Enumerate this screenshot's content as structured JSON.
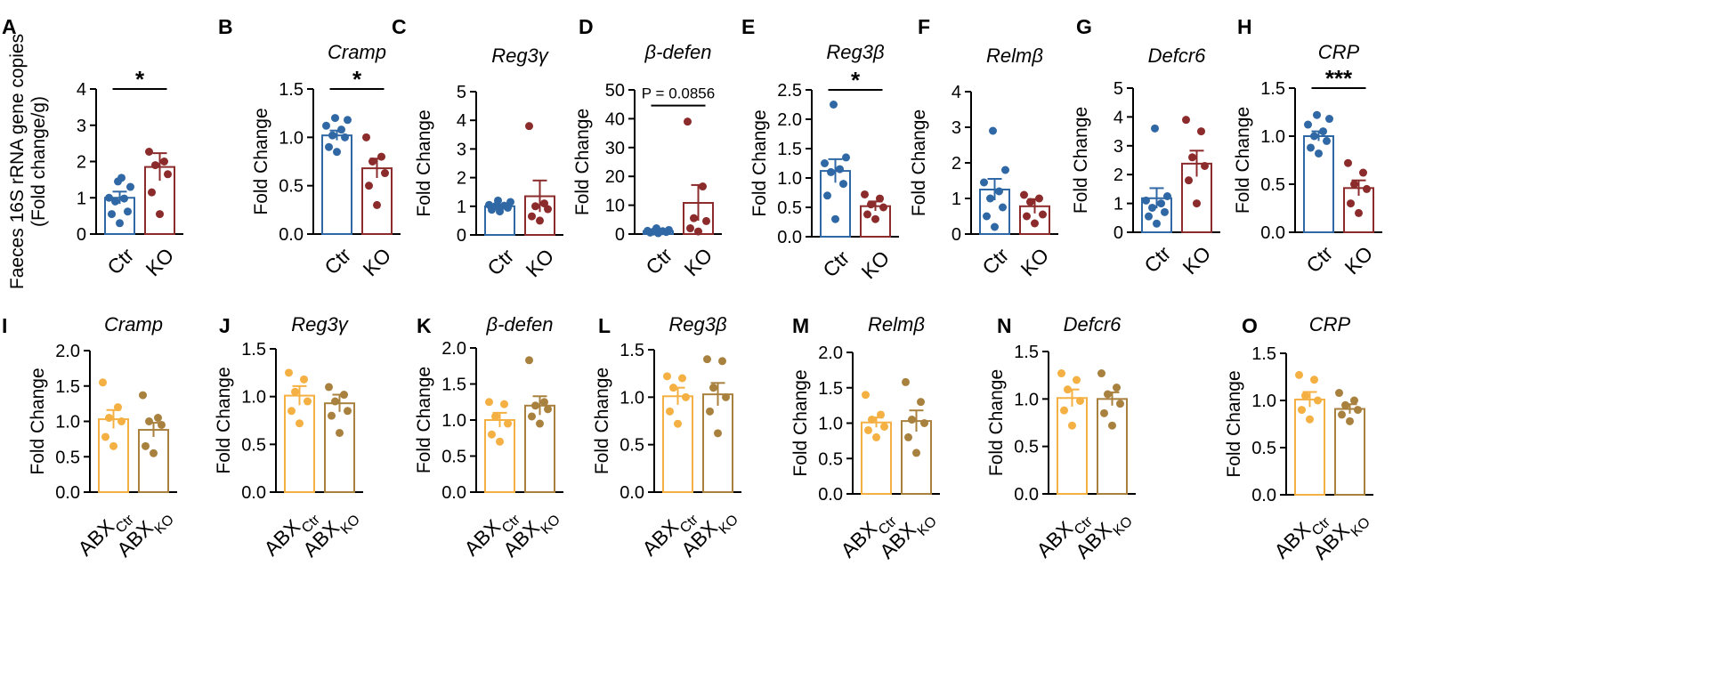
{
  "figure": {
    "colors": {
      "ctr": "#2f68a4",
      "ko": "#8c2b2b",
      "abx_ctr": "#f4b042",
      "abx_ko": "#a9813f",
      "axis": "#000000"
    }
  },
  "chart_data": [
    {
      "id": "A",
      "letter": "A",
      "type": "bar",
      "title": "",
      "ylabel_lines": [
        "Faeces 16S rRNA gene copies",
        "(Fold change/g)"
      ],
      "ylim": [
        0,
        4
      ],
      "yticks": [
        0,
        1,
        2,
        3,
        4
      ],
      "ytick_labels": [
        "0",
        "1",
        "2",
        "3",
        "4"
      ],
      "categories": [
        "Ctr",
        "KO"
      ],
      "cat_subs": [
        "",
        ""
      ],
      "color_keys": [
        "ctr",
        "ko"
      ],
      "means": [
        1.0,
        1.85
      ],
      "sems": [
        0.17,
        0.38
      ],
      "points": [
        [
          0.3,
          0.55,
          0.62,
          0.9,
          0.98,
          1.0,
          1.3,
          1.45,
          1.55
        ],
        [
          0.55,
          1.15,
          1.65,
          1.9,
          2.0,
          2.27
        ]
      ],
      "significance": "*"
    },
    {
      "id": "B",
      "letter": "B",
      "type": "bar",
      "title": "Cramp",
      "ylabel_lines": [
        "Fold Change"
      ],
      "ylim": [
        0,
        1.5
      ],
      "yticks": [
        0,
        0.5,
        1.0,
        1.5
      ],
      "ytick_labels": [
        "0.0",
        "0.5",
        "1.0",
        "1.5"
      ],
      "categories": [
        "Ctr",
        "KO"
      ],
      "cat_subs": [
        "",
        ""
      ],
      "color_keys": [
        "ctr",
        "ko"
      ],
      "means": [
        1.02,
        0.68
      ],
      "sems": [
        0.05,
        0.1
      ],
      "points": [
        [
          0.85,
          0.9,
          1.0,
          1.02,
          1.08,
          1.12,
          1.18,
          1.2
        ],
        [
          0.3,
          0.5,
          0.63,
          0.75,
          0.8,
          1.0
        ]
      ],
      "significance": "*"
    },
    {
      "id": "C",
      "letter": "C",
      "type": "bar",
      "title": "Reg3γ",
      "ylabel_lines": [
        "Fold Change"
      ],
      "ylim": [
        0,
        5
      ],
      "yticks": [
        0,
        1,
        2,
        3,
        4,
        5
      ],
      "ytick_labels": [
        "0",
        "1",
        "2",
        "3",
        "4",
        "5"
      ],
      "categories": [
        "Ctr",
        "KO"
      ],
      "cat_subs": [
        "",
        ""
      ],
      "color_keys": [
        "ctr",
        "ko"
      ],
      "means": [
        1.0,
        1.35
      ],
      "sems": [
        0.06,
        0.55
      ],
      "points": [
        [
          0.82,
          0.88,
          0.95,
          1.0,
          1.02,
          1.05,
          1.15,
          1.2
        ],
        [
          0.5,
          0.65,
          0.9,
          1.0,
          1.1,
          3.8
        ]
      ],
      "significance": ""
    },
    {
      "id": "D",
      "letter": "D",
      "type": "bar",
      "title": "β-defen",
      "ylabel_lines": [
        "Fold Change"
      ],
      "ylim": [
        0,
        50
      ],
      "yticks": [
        0,
        10,
        20,
        30,
        40,
        50
      ],
      "ytick_labels": [
        "0",
        "10",
        "20",
        "30",
        "40",
        "50"
      ],
      "categories": [
        "Ctr",
        "KO"
      ],
      "cat_subs": [
        "",
        ""
      ],
      "color_keys": [
        "ctr",
        "ko"
      ],
      "means": [
        1.0,
        10.8
      ],
      "sems": [
        0.3,
        6.2
      ],
      "points": [
        [
          0.3,
          0.5,
          0.7,
          0.9,
          1.0,
          1.1,
          1.4,
          2.0
        ],
        [
          0.9,
          2.0,
          4.5,
          5.5,
          16.5,
          39.0
        ]
      ],
      "significance": "P = 0.0856"
    },
    {
      "id": "E",
      "letter": "E",
      "type": "bar",
      "title": "Reg3β",
      "ylabel_lines": [
        "Fold Change"
      ],
      "ylim": [
        0,
        2.5
      ],
      "yticks": [
        0,
        0.5,
        1.0,
        1.5,
        2.0,
        2.5
      ],
      "ytick_labels": [
        "0.0",
        "0.5",
        "1.0",
        "1.5",
        "2.0",
        "2.5"
      ],
      "categories": [
        "Ctr",
        "KO"
      ],
      "cat_subs": [
        "",
        ""
      ],
      "color_keys": [
        "ctr",
        "ko"
      ],
      "means": [
        1.12,
        0.52
      ],
      "sems": [
        0.2,
        0.08
      ],
      "points": [
        [
          0.3,
          0.7,
          0.9,
          1.1,
          1.15,
          1.25,
          1.35,
          2.25
        ],
        [
          0.3,
          0.38,
          0.5,
          0.55,
          0.65,
          0.72
        ]
      ],
      "significance": "*"
    },
    {
      "id": "F",
      "letter": "F",
      "type": "bar",
      "title": "Relmβ",
      "ylabel_lines": [
        "Fold Change"
      ],
      "ylim": [
        0,
        4
      ],
      "yticks": [
        0,
        1,
        2,
        3,
        4
      ],
      "ytick_labels": [
        "0",
        "1",
        "2",
        "3",
        "4"
      ],
      "categories": [
        "Ctr",
        "KO"
      ],
      "cat_subs": [
        "",
        ""
      ],
      "color_keys": [
        "ctr",
        "ko"
      ],
      "means": [
        1.25,
        0.78
      ],
      "sems": [
        0.3,
        0.2
      ],
      "points": [
        [
          0.2,
          0.5,
          0.75,
          1.0,
          1.2,
          1.45,
          1.8,
          2.9
        ],
        [
          0.3,
          0.5,
          0.55,
          0.9,
          1.0,
          1.1
        ]
      ],
      "significance": ""
    },
    {
      "id": "G",
      "letter": "G",
      "type": "bar",
      "title": "Defcr6",
      "ylabel_lines": [
        "Fold Change"
      ],
      "ylim": [
        0,
        5
      ],
      "yticks": [
        0,
        1,
        2,
        3,
        4,
        5
      ],
      "ytick_labels": [
        "0",
        "1",
        "2",
        "3",
        "4",
        "5"
      ],
      "categories": [
        "Ctr",
        "KO"
      ],
      "cat_subs": [
        "",
        ""
      ],
      "color_keys": [
        "ctr",
        "ko"
      ],
      "means": [
        1.18,
        2.38
      ],
      "sems": [
        0.35,
        0.45
      ],
      "points": [
        [
          0.3,
          0.55,
          0.7,
          0.85,
          1.0,
          1.1,
          1.25,
          3.6
        ],
        [
          1.0,
          1.8,
          2.3,
          2.6,
          3.5,
          3.9
        ]
      ],
      "significance": ""
    },
    {
      "id": "H",
      "letter": "H",
      "type": "bar",
      "title": "CRP",
      "ylabel_lines": [
        "Fold Change"
      ],
      "ylim": [
        0,
        1.5
      ],
      "yticks": [
        0,
        0.5,
        1.0,
        1.5
      ],
      "ytick_labels": [
        "0.0",
        "0.5",
        "1.0",
        "1.5"
      ],
      "categories": [
        "Ctr",
        "KO"
      ],
      "cat_subs": [
        "",
        ""
      ],
      "color_keys": [
        "ctr",
        "ko"
      ],
      "means": [
        1.0,
        0.46
      ],
      "sems": [
        0.05,
        0.08
      ],
      "points": [
        [
          0.82,
          0.88,
          0.95,
          1.0,
          1.05,
          1.12,
          1.18,
          1.22
        ],
        [
          0.2,
          0.3,
          0.45,
          0.5,
          0.62,
          0.72
        ]
      ],
      "significance": "***"
    },
    {
      "id": "I",
      "letter": "I",
      "type": "bar",
      "title": "Cramp",
      "ylabel_lines": [
        "Fold Change"
      ],
      "ylim": [
        0,
        2
      ],
      "yticks": [
        0,
        0.5,
        1.0,
        1.5,
        2.0
      ],
      "ytick_labels": [
        "0.0",
        "0.5",
        "1.0",
        "1.5",
        "2.0"
      ],
      "categories": [
        "ABX",
        "ABX"
      ],
      "cat_subs": [
        "Ctr",
        "KO"
      ],
      "color_keys": [
        "abx_ctr",
        "abx_ko"
      ],
      "means": [
        1.03,
        0.88
      ],
      "sems": [
        0.13,
        0.1
      ],
      "points": [
        [
          0.65,
          0.78,
          1.0,
          1.05,
          1.2,
          1.55
        ],
        [
          0.55,
          0.65,
          0.95,
          1.0,
          1.05,
          1.37
        ]
      ],
      "significance": ""
    },
    {
      "id": "J",
      "letter": "J",
      "type": "bar",
      "title": "Reg3γ",
      "ylabel_lines": [
        "Fold Change"
      ],
      "ylim": [
        0,
        1.5
      ],
      "yticks": [
        0,
        0.5,
        1.0,
        1.5
      ],
      "ytick_labels": [
        "0.0",
        "0.5",
        "1.0",
        "1.5"
      ],
      "categories": [
        "ABX",
        "ABX"
      ],
      "cat_subs": [
        "Ctr",
        "KO"
      ],
      "color_keys": [
        "abx_ctr",
        "abx_ko"
      ],
      "means": [
        1.01,
        0.93
      ],
      "sems": [
        0.1,
        0.09
      ],
      "points": [
        [
          0.72,
          0.85,
          0.95,
          1.05,
          1.18,
          1.25
        ],
        [
          0.62,
          0.8,
          0.85,
          0.95,
          1.02,
          1.1
        ]
      ],
      "significance": ""
    },
    {
      "id": "K",
      "letter": "K",
      "type": "bar",
      "title": "β-defen",
      "ylabel_lines": [
        "Fold Change"
      ],
      "ylim": [
        0,
        2
      ],
      "yticks": [
        0,
        0.5,
        1.0,
        1.5,
        2.0
      ],
      "ytick_labels": [
        "0.0",
        "0.5",
        "1.0",
        "1.5",
        "2.0"
      ],
      "categories": [
        "ABX",
        "ABX"
      ],
      "cat_subs": [
        "Ctr",
        "KO"
      ],
      "color_keys": [
        "abx_ctr",
        "abx_ko"
      ],
      "means": [
        1.0,
        1.2
      ],
      "sems": [
        0.1,
        0.13
      ],
      "points": [
        [
          0.7,
          0.8,
          0.95,
          1.05,
          1.22,
          1.25
        ],
        [
          0.95,
          1.05,
          1.15,
          1.2,
          1.25,
          1.83
        ]
      ],
      "significance": ""
    },
    {
      "id": "L",
      "letter": "L",
      "type": "bar",
      "title": "Reg3β",
      "ylabel_lines": [
        "Fold Change"
      ],
      "ylim": [
        0,
        1.5
      ],
      "yticks": [
        0,
        0.5,
        1.0,
        1.5
      ],
      "ytick_labels": [
        "0.0",
        "0.5",
        "1.0",
        "1.5"
      ],
      "categories": [
        "ABX",
        "ABX"
      ],
      "cat_subs": [
        "Ctr",
        "KO"
      ],
      "color_keys": [
        "abx_ctr",
        "abx_ko"
      ],
      "means": [
        1.01,
        1.03
      ],
      "sems": [
        0.09,
        0.12
      ],
      "points": [
        [
          0.72,
          0.85,
          1.0,
          1.1,
          1.2,
          1.22
        ],
        [
          0.62,
          0.85,
          1.0,
          1.1,
          1.38,
          1.4
        ]
      ],
      "significance": ""
    },
    {
      "id": "M",
      "letter": "M",
      "type": "bar",
      "title": "Relmβ",
      "ylabel_lines": [
        "Fold Change"
      ],
      "ylim": [
        0,
        2
      ],
      "yticks": [
        0,
        0.5,
        1.0,
        1.5,
        2.0
      ],
      "ytick_labels": [
        "0.0",
        "0.5",
        "1.0",
        "1.5",
        "2.0"
      ],
      "categories": [
        "ABX",
        "ABX"
      ],
      "cat_subs": [
        "Ctr",
        "KO"
      ],
      "color_keys": [
        "abx_ctr",
        "abx_ko"
      ],
      "means": [
        1.01,
        1.03
      ],
      "sems": [
        0.07,
        0.15
      ],
      "points": [
        [
          0.8,
          0.9,
          0.95,
          1.05,
          1.12,
          1.4
        ],
        [
          0.58,
          0.8,
          1.0,
          1.05,
          1.3,
          1.58
        ]
      ],
      "significance": ""
    },
    {
      "id": "N",
      "letter": "N",
      "type": "bar",
      "title": "Defcr6",
      "ylabel_lines": [
        "Fold Change"
      ],
      "ylim": [
        0,
        1.5
      ],
      "yticks": [
        0,
        0.5,
        1.0,
        1.5
      ],
      "ytick_labels": [
        "0.0",
        "0.5",
        "1.0",
        "1.5"
      ],
      "categories": [
        "ABX",
        "ABX"
      ],
      "cat_subs": [
        "Ctr",
        "KO"
      ],
      "color_keys": [
        "abx_ctr",
        "abx_ko"
      ],
      "means": [
        1.01,
        1.0
      ],
      "sems": [
        0.09,
        0.07
      ],
      "points": [
        [
          0.72,
          0.88,
          0.98,
          1.1,
          1.2,
          1.27
        ],
        [
          0.72,
          0.85,
          0.95,
          1.05,
          1.12,
          1.27
        ]
      ],
      "significance": ""
    },
    {
      "id": "O",
      "letter": "O",
      "type": "bar",
      "title": "CRP",
      "ylabel_lines": [
        "Fold Change"
      ],
      "ylim": [
        0,
        1.5
      ],
      "yticks": [
        0,
        0.5,
        1.0,
        1.5
      ],
      "ytick_labels": [
        "0.0",
        "0.5",
        "1.0",
        "1.5"
      ],
      "categories": [
        "ABX",
        "ABX"
      ],
      "cat_subs": [
        "Ctr",
        "KO"
      ],
      "color_keys": [
        "abx_ctr",
        "abx_ko"
      ],
      "means": [
        1.01,
        0.91
      ],
      "sems": [
        0.08,
        0.05
      ],
      "points": [
        [
          0.8,
          0.9,
          1.0,
          1.05,
          1.22,
          1.27
        ],
        [
          0.78,
          0.85,
          0.9,
          0.95,
          1.0,
          1.08
        ]
      ],
      "significance": ""
    }
  ]
}
